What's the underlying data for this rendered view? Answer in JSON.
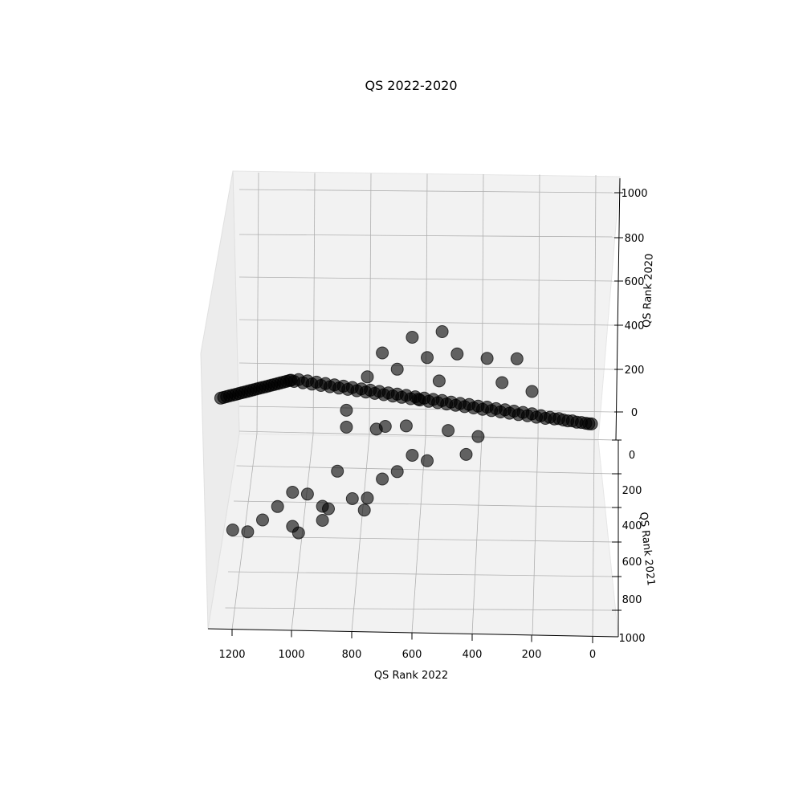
{
  "chart_data": {
    "type": "scatter3d",
    "title": "QS 2022-2020",
    "xlabel": "QS Rank 2022",
    "ylabel": "QS Rank 2021",
    "zlabel": "QS Rank 2020",
    "xlim": [
      0,
      1250
    ],
    "ylim": [
      0,
      1000
    ],
    "zlim": [
      -100,
      1000
    ],
    "x_ticks": [
      "1200",
      "1000",
      "800",
      "600",
      "400",
      "200",
      "0"
    ],
    "y_ticks": [
      "0",
      "200",
      "400",
      "600",
      "800",
      "1000"
    ],
    "z_ticks": [
      "0",
      "200",
      "400",
      "600",
      "800",
      "1000"
    ],
    "grid": true,
    "marker_color": "#000000",
    "marker_alpha": 0.6,
    "series": [
      {
        "points": [
          [
            1,
            1,
            1
          ],
          [
            10,
            12,
            10
          ],
          [
            20,
            22,
            20
          ],
          [
            35,
            33,
            34
          ],
          [
            50,
            50,
            48
          ],
          [
            65,
            62,
            65
          ],
          [
            80,
            80,
            78
          ],
          [
            95,
            97,
            95
          ],
          [
            110,
            108,
            112
          ],
          [
            125,
            128,
            124
          ],
          [
            140,
            138,
            142
          ],
          [
            155,
            158,
            150
          ],
          [
            170,
            165,
            172
          ],
          [
            185,
            190,
            180
          ],
          [
            200,
            195,
            205
          ],
          [
            215,
            218,
            210
          ],
          [
            230,
            225,
            235
          ],
          [
            245,
            250,
            240
          ],
          [
            260,
            255,
            265
          ],
          [
            275,
            280,
            270
          ],
          [
            290,
            285,
            295
          ],
          [
            305,
            310,
            300
          ],
          [
            320,
            318,
            325
          ],
          [
            335,
            340,
            330
          ],
          [
            350,
            345,
            355
          ],
          [
            365,
            370,
            360
          ],
          [
            380,
            378,
            385
          ],
          [
            395,
            400,
            390
          ],
          [
            410,
            405,
            415
          ],
          [
            425,
            430,
            420
          ],
          [
            440,
            438,
            445
          ],
          [
            455,
            460,
            450
          ],
          [
            470,
            468,
            475
          ],
          [
            485,
            490,
            480
          ],
          [
            500,
            495,
            505
          ],
          [
            515,
            520,
            510
          ],
          [
            530,
            528,
            535
          ],
          [
            545,
            550,
            540
          ],
          [
            560,
            558,
            565
          ],
          [
            575,
            580,
            570
          ],
          [
            590,
            588,
            595
          ],
          [
            605,
            610,
            600
          ],
          [
            620,
            618,
            625
          ],
          [
            635,
            640,
            630
          ],
          [
            650,
            648,
            655
          ],
          [
            665,
            670,
            660
          ],
          [
            680,
            678,
            685
          ],
          [
            695,
            700,
            690
          ],
          [
            710,
            708,
            715
          ],
          [
            725,
            730,
            720
          ],
          [
            740,
            738,
            745
          ],
          [
            755,
            760,
            750
          ],
          [
            770,
            768,
            775
          ],
          [
            785,
            790,
            780
          ],
          [
            800,
            798,
            805
          ],
          [
            815,
            820,
            810
          ],
          [
            830,
            828,
            835
          ],
          [
            845,
            850,
            840
          ],
          [
            860,
            858,
            865
          ],
          [
            875,
            880,
            870
          ],
          [
            890,
            888,
            895
          ],
          [
            905,
            910,
            900
          ],
          [
            920,
            918,
            925
          ],
          [
            935,
            940,
            930
          ],
          [
            950,
            948,
            955
          ],
          [
            965,
            970,
            960
          ],
          [
            980,
            978,
            985
          ],
          [
            995,
            1000,
            990
          ],
          [
            1005,
            1000,
            1000
          ],
          [
            1010,
            1000,
            1000
          ],
          [
            1020,
            1000,
            1000
          ],
          [
            1030,
            1000,
            1000
          ],
          [
            1040,
            1000,
            1000
          ],
          [
            1050,
            1000,
            1000
          ],
          [
            1060,
            1000,
            1000
          ],
          [
            1070,
            1000,
            1000
          ],
          [
            1080,
            1000,
            1000
          ],
          [
            1090,
            1000,
            1000
          ],
          [
            1100,
            1000,
            1000
          ],
          [
            1110,
            1000,
            1000
          ],
          [
            1120,
            1000,
            1000
          ],
          [
            1130,
            1000,
            1000
          ],
          [
            1140,
            1000,
            1000
          ],
          [
            1150,
            1000,
            1000
          ],
          [
            1160,
            1000,
            1000
          ],
          [
            1170,
            1000,
            1000
          ],
          [
            1180,
            1000,
            1000
          ],
          [
            1190,
            1000,
            1000
          ],
          [
            1200,
            1000,
            1000
          ],
          [
            1210,
            1000,
            1000
          ],
          [
            1220,
            1000,
            1000
          ],
          [
            1230,
            1000,
            1000
          ],
          [
            1240,
            1000,
            1000
          ],
          [
            700,
            700,
            900
          ],
          [
            600,
            600,
            900
          ],
          [
            500,
            500,
            850
          ],
          [
            750,
            700,
            800
          ],
          [
            650,
            650,
            780
          ],
          [
            550,
            550,
            760
          ],
          [
            820,
            800,
            700
          ],
          [
            450,
            450,
            700
          ],
          [
            350,
            350,
            600
          ],
          [
            250,
            250,
            520
          ],
          [
            600,
            620,
            320
          ],
          [
            700,
            720,
            280
          ],
          [
            800,
            820,
            260
          ],
          [
            900,
            920,
            300
          ],
          [
            850,
            830,
            420
          ],
          [
            950,
            920,
            380
          ],
          [
            1000,
            950,
            420
          ],
          [
            1050,
            980,
            380
          ],
          [
            550,
            560,
            250
          ],
          [
            650,
            600,
            250
          ],
          [
            750,
            760,
            220
          ],
          [
            420,
            430,
            180
          ],
          [
            380,
            420,
            250
          ],
          [
            1100,
            900,
            300
          ],
          [
            1150,
            950,
            280
          ],
          [
            1200,
            980,
            320
          ],
          [
            1000,
            900,
            230
          ],
          [
            900,
            870,
            210
          ],
          [
            480,
            500,
            350
          ],
          [
            760,
            650,
            120
          ],
          [
            880,
            720,
            200
          ],
          [
            980,
            800,
            150
          ],
          [
            620,
            560,
            450
          ],
          [
            720,
            680,
            520
          ],
          [
            820,
            760,
            600
          ],
          [
            580,
            640,
            600
          ],
          [
            690,
            750,
            550
          ],
          [
            510,
            530,
            620
          ],
          [
            300,
            400,
            480
          ],
          [
            200,
            280,
            350
          ]
        ]
      }
    ]
  }
}
